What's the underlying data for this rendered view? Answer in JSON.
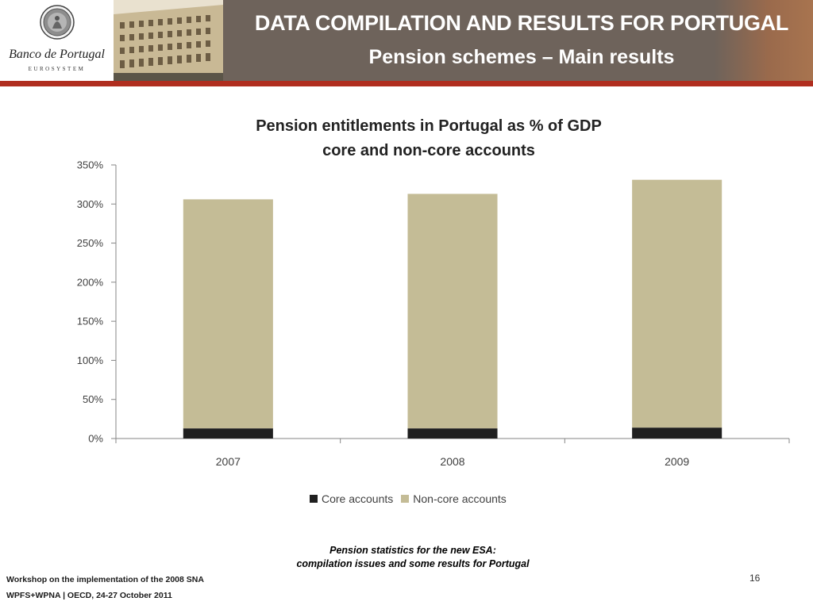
{
  "header": {
    "logo_name": "Banco de Portugal",
    "logo_sub": "EUROSYSTEM",
    "title": "DATA COMPILATION AND RESULTS FOR PORTUGAL",
    "subtitle": "Pension schemes – Main results"
  },
  "chart_data": {
    "type": "bar",
    "stacked": true,
    "title": "Pension entitlements in Portugal as % of GDP",
    "subtitle": "core and non-core accounts",
    "categories": [
      "2007",
      "2008",
      "2009"
    ],
    "series": [
      {
        "name": "Core accounts",
        "color": "#1f1f1f",
        "values": [
          13,
          13,
          14
        ]
      },
      {
        "name": "Non-core accounts",
        "color": "#c4bc96",
        "values": [
          293,
          300,
          317
        ]
      }
    ],
    "ylim": [
      0,
      350
    ],
    "yticks": [
      "0%",
      "50%",
      "100%",
      "150%",
      "200%",
      "250%",
      "300%",
      "350%"
    ],
    "yunit": "%",
    "grid": false,
    "legend_position": "bottom"
  },
  "footer": {
    "caption_line1": "Pension statistics for the new ESA:",
    "caption_line2": "compilation issues and some results for Portugal",
    "workshop_line1": "Workshop on the implementation of the 2008 SNA",
    "workshop_line2": "WPFS+WPNA | OECD,  24-27 October 2011",
    "page_number": "16"
  }
}
